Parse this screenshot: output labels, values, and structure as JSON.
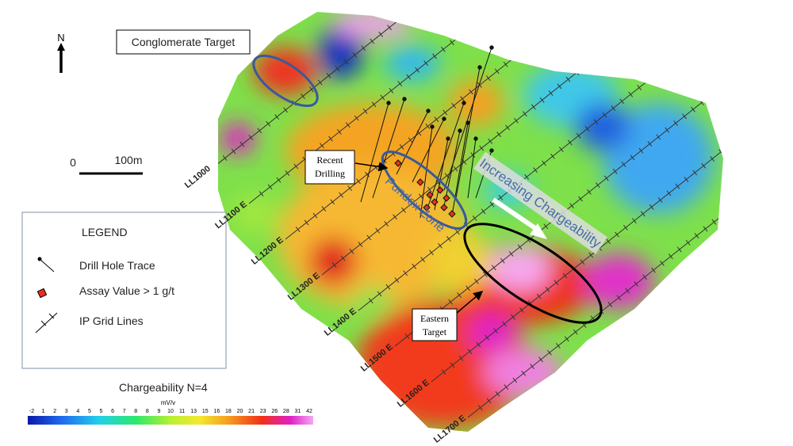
{
  "north": "N",
  "callouts": {
    "conglomerate": "Conglomerate Target",
    "recent_drilling": [
      "Recent",
      "Drilling"
    ],
    "pundex": "Pundex Zone",
    "chargeability": "Increasing Chargeability",
    "eastern": [
      "Eastern",
      "Target"
    ]
  },
  "scale": {
    "zero": "0",
    "length": "100m"
  },
  "legend": {
    "title": "LEGEND",
    "items": [
      "Drill Hole Trace",
      "Assay Value > 1 g/t",
      "IP Grid Lines"
    ]
  },
  "grid_lines": [
    "LL1000",
    "LL1100 E",
    "LL1200 E",
    "LL1300 E",
    "LL1400 E",
    "LL1500 E",
    "LL1600 E",
    "LL1700 E"
  ],
  "colorbar": {
    "title": "Chargeability N=4",
    "unit": "mV/v",
    "labels": [
      "-2",
      "1",
      "2",
      "3",
      "4",
      "5",
      "5",
      "6",
      "7",
      "8",
      "8",
      "9",
      "10",
      "11",
      "13",
      "15",
      "16",
      "18",
      "20",
      "21",
      "23",
      "26",
      "28",
      "31",
      "42"
    ]
  }
}
